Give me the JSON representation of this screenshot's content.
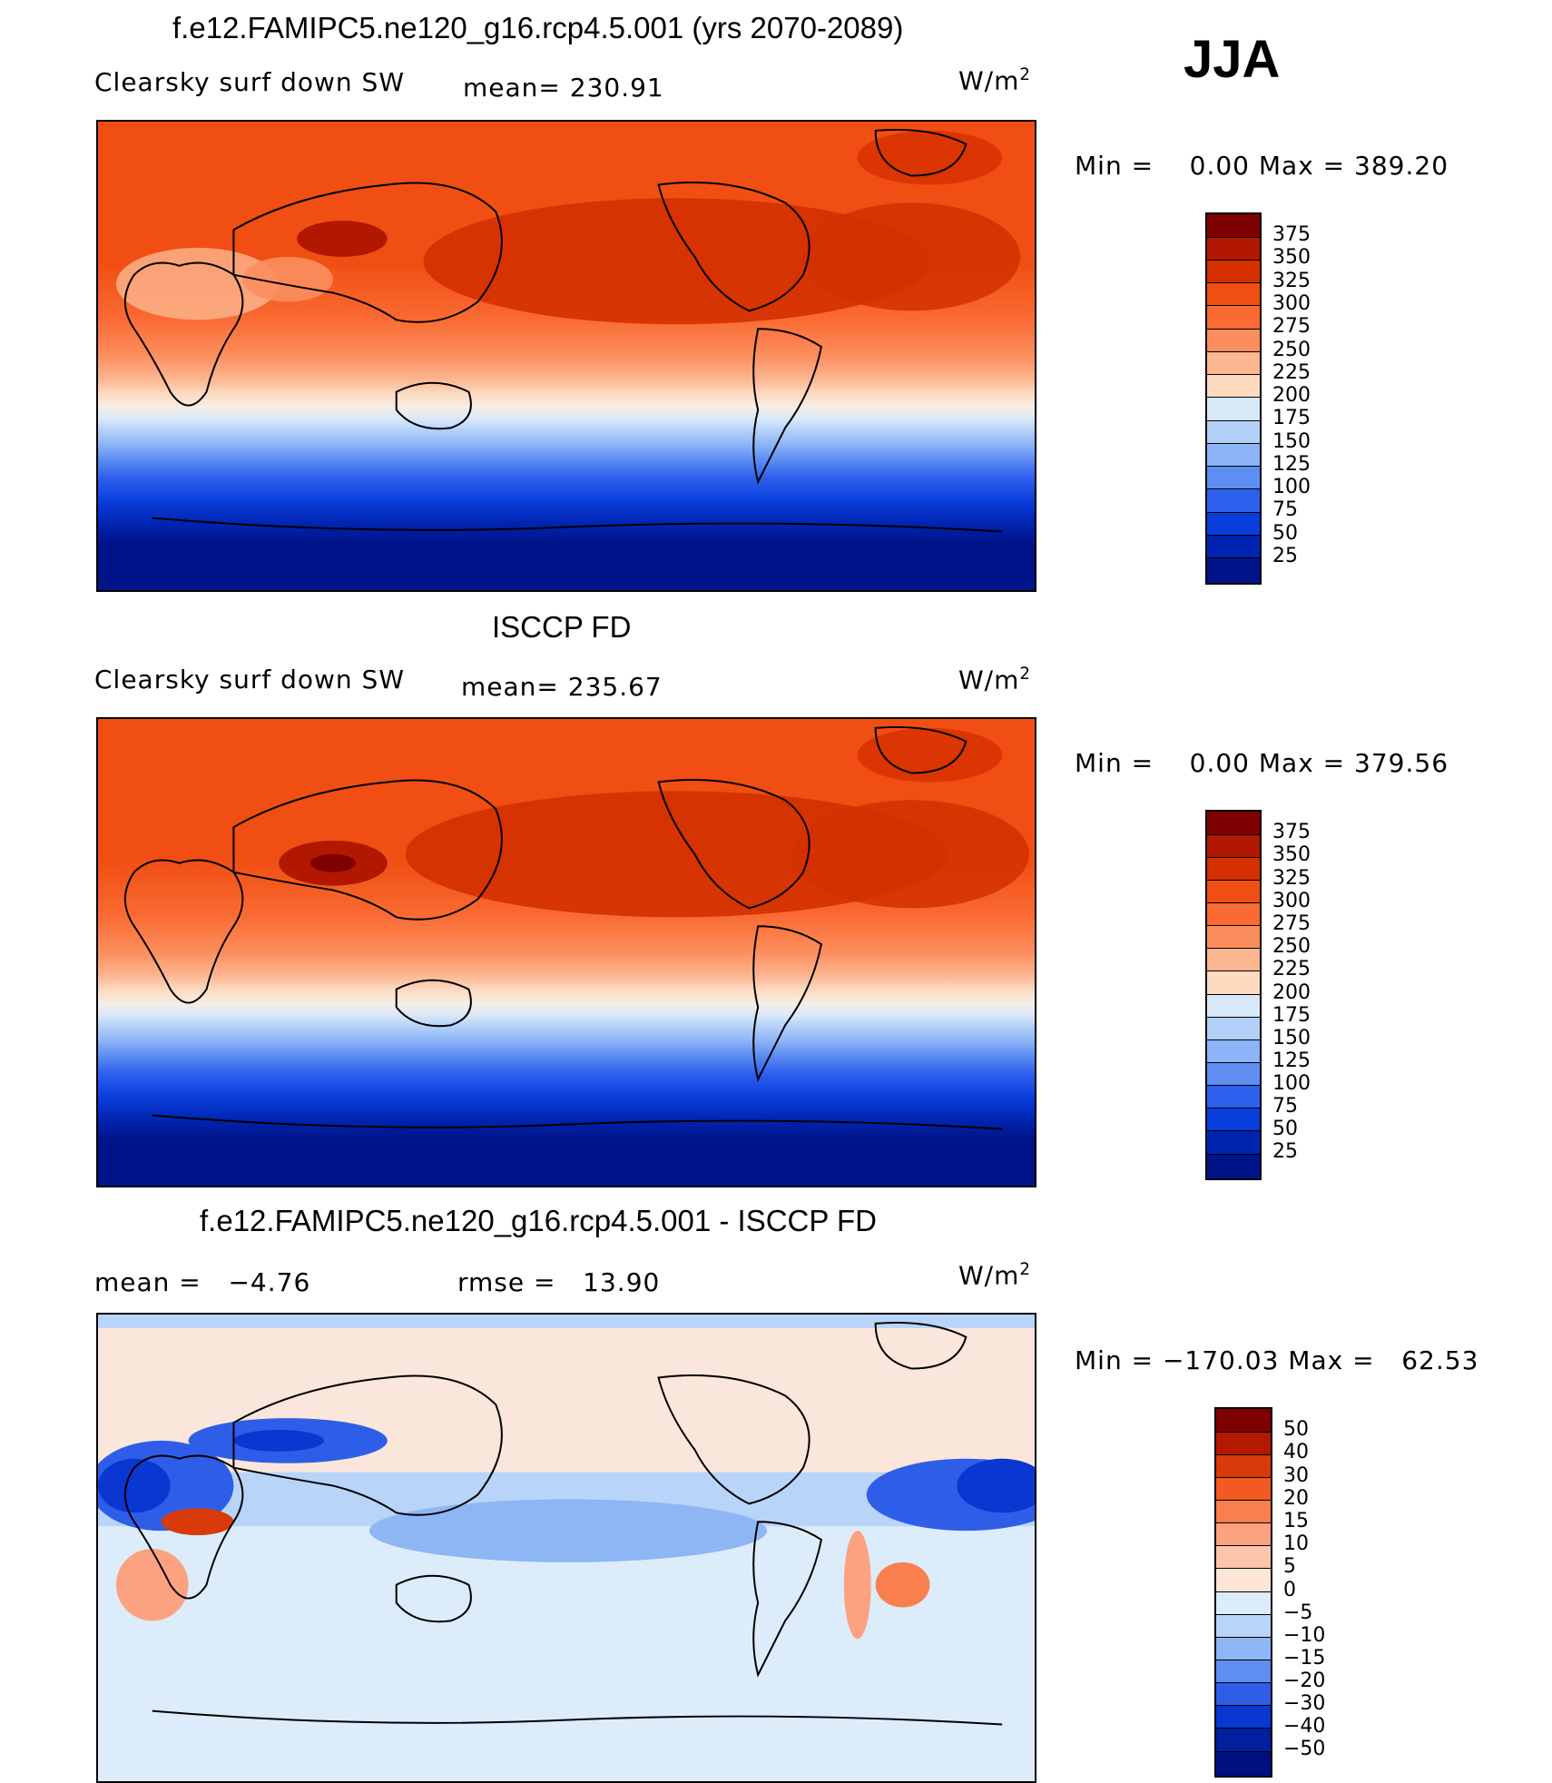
{
  "panel_model": {
    "title": "f.e12.FAMIPC5.ne120_g16.rcp4.5.001 (yrs 2070-2089)",
    "variable": "Clearsky surf down SW",
    "mean_text": "mean= 230.91",
    "units": "W/m",
    "units_sup": "2",
    "minmax_text": "Min =    0.00 Max = 389.20",
    "colorbar_labels": [
      "375",
      "350",
      "325",
      "300",
      "275",
      "250",
      "225",
      "200",
      "175",
      "150",
      "125",
      "100",
      "75",
      "50",
      "25"
    ]
  },
  "panel_obs": {
    "title": "ISCCP FD",
    "variable": "Clearsky surf down SW",
    "mean_text": "mean= 235.67",
    "units": "W/m",
    "units_sup": "2",
    "minmax_text": "Min =    0.00 Max = 379.56",
    "colorbar_labels": [
      "375",
      "350",
      "325",
      "300",
      "275",
      "250",
      "225",
      "200",
      "175",
      "150",
      "125",
      "100",
      "75",
      "50",
      "25"
    ]
  },
  "panel_diff": {
    "title": "f.e12.FAMIPC5.ne120_g16.rcp4.5.001 - ISCCP FD",
    "mean_text": "mean =   −4.76",
    "rmse_text": "rmse =   13.90",
    "units": "W/m",
    "units_sup": "2",
    "minmax_text": "Min = −170.03 Max =   62.53",
    "colorbar_labels": [
      "50",
      "40",
      "30",
      "20",
      "15",
      "10",
      "5",
      "0",
      "−5",
      "−10",
      "−15",
      "−20",
      "−30",
      "−40",
      "−50"
    ]
  },
  "season": "JJA",
  "colors": {
    "abs_scale": [
      "#7f0000",
      "#b21800",
      "#d43000",
      "#f04e12",
      "#fa6a32",
      "#fc8e5e",
      "#fcb690",
      "#fddac0",
      "#f7eee6",
      "#d8e8f8",
      "#b2d0f8",
      "#8cb4f6",
      "#5e8ef2",
      "#2e60ee",
      "#0a3edc",
      "#0024b0",
      "#001489"
    ],
    "diff_scale": [
      "#7f0000",
      "#b51800",
      "#d83a0a",
      "#f25a22",
      "#fa7f4e",
      "#fca280",
      "#fdc6aa",
      "#fde6d6",
      "#dcecfa",
      "#b8d4f8",
      "#8eb6f4",
      "#5e8ef0",
      "#2e5ee8",
      "#0a36d2",
      "#0020a0",
      "#001080"
    ]
  }
}
